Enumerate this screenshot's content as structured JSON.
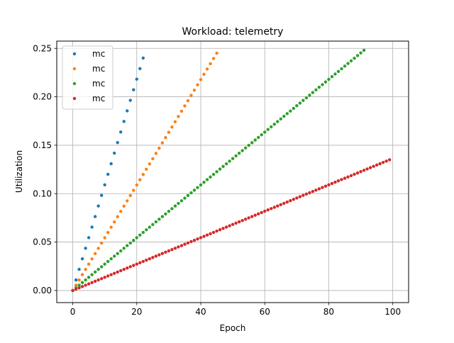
{
  "chart_data": {
    "type": "scatter",
    "title": "Workload: telemetry",
    "xlabel": "Epoch",
    "ylabel": "Utilization",
    "xlim": [
      -5,
      104.95
    ],
    "ylim": [
      -0.0125,
      0.2575
    ],
    "xticks": [
      0,
      20,
      40,
      60,
      80,
      100
    ],
    "xtick_labels": [
      "0",
      "20",
      "40",
      "60",
      "80",
      "100"
    ],
    "yticks": [
      0.0,
      0.05,
      0.1,
      0.15,
      0.2,
      0.25
    ],
    "ytick_labels": [
      "0.00",
      "0.05",
      "0.10",
      "0.15",
      "0.20",
      "0.25"
    ],
    "grid": true,
    "legend": {
      "position": "top-left",
      "entries": [
        "mc",
        "mc",
        "mc",
        "mc"
      ]
    },
    "series": [
      {
        "name": "mc",
        "color": "#1f77b4",
        "x_start": 0,
        "x_end": 22,
        "x_step": 1,
        "y_start": 0.0,
        "y_end": 0.24
      },
      {
        "name": "mc",
        "color": "#ff7f0e",
        "x_start": 0,
        "x_end": 45,
        "x_step": 1,
        "y_start": 0.0,
        "y_end": 0.245
      },
      {
        "name": "mc",
        "color": "#2ca02c",
        "x_start": 0,
        "x_end": 91,
        "x_step": 1,
        "y_start": 0.0,
        "y_end": 0.248
      },
      {
        "name": "mc",
        "color": "#d62728",
        "x_start": 0,
        "x_end": 99,
        "x_step": 1,
        "y_start": 0.0,
        "y_end": 0.135
      }
    ]
  }
}
